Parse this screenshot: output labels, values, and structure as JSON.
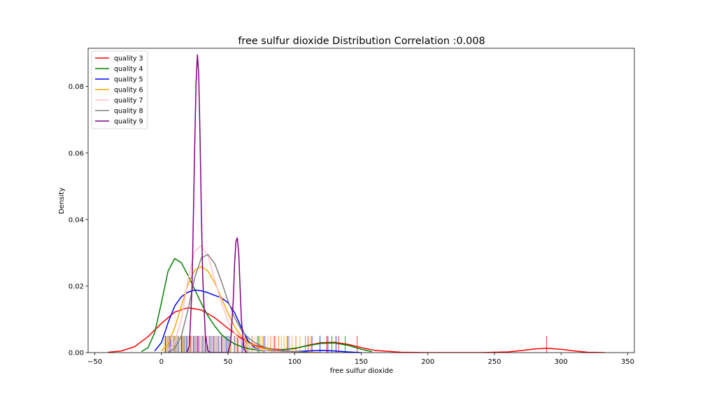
{
  "chart_data": {
    "type": "line",
    "title": "free sulfur dioxide Distribution Correlation :0.008",
    "xlabel": "free sulfur dioxide",
    "ylabel": "Density",
    "xlim": [
      -55,
      355
    ],
    "ylim": [
      0,
      0.0915
    ],
    "xticks": [
      -50,
      0,
      50,
      100,
      150,
      200,
      250,
      300,
      350
    ],
    "xtick_labels": [
      "−50",
      "0",
      "50",
      "100",
      "150",
      "200",
      "250",
      "300",
      "350"
    ],
    "yticks": [
      0,
      0.02,
      0.04,
      0.06,
      0.08
    ],
    "ytick_labels": [
      "0.00",
      "0.02",
      "0.04",
      "0.06",
      "0.08"
    ],
    "grid": false,
    "legend_position": "top-left",
    "rug_height": 0.005,
    "series": [
      {
        "name": "quality 3",
        "color": "#ff0000",
        "x": [
          -40,
          -30,
          -20,
          -10,
          0,
          10,
          20,
          30,
          40,
          50,
          60,
          70,
          80,
          90,
          100,
          110,
          120,
          130,
          140,
          150,
          160,
          180,
          200,
          220,
          240,
          260,
          270,
          280,
          289,
          300,
          310,
          320,
          333
        ],
        "y": [
          0.0001,
          0.0005,
          0.0018,
          0.0048,
          0.0088,
          0.0122,
          0.0135,
          0.0128,
          0.0105,
          0.0073,
          0.0043,
          0.0022,
          0.0012,
          0.0009,
          0.0012,
          0.0022,
          0.003,
          0.0031,
          0.0025,
          0.0015,
          0.0007,
          0.0001,
          0.0,
          0.0,
          0.0,
          0.0002,
          0.0006,
          0.0011,
          0.0013,
          0.001,
          0.0005,
          0.0001,
          0.0
        ],
        "rug": [
          3,
          5,
          6,
          7,
          9,
          10,
          11,
          13,
          14,
          16,
          17,
          19,
          22,
          24,
          26,
          28,
          31,
          34,
          38,
          41,
          45,
          52,
          58,
          63,
          72,
          85,
          110,
          124,
          133,
          147,
          289
        ]
      },
      {
        "name": "quality 4",
        "color": "#008000",
        "x": [
          -15,
          -10,
          -5,
          0,
          5,
          10,
          15,
          20,
          25,
          30,
          35,
          40,
          45,
          50,
          55,
          60,
          65,
          70,
          75,
          80,
          90,
          100,
          110,
          120,
          130,
          140,
          150,
          158
        ],
        "y": [
          0.0003,
          0.0015,
          0.006,
          0.015,
          0.0245,
          0.0283,
          0.027,
          0.0232,
          0.019,
          0.0148,
          0.011,
          0.008,
          0.0055,
          0.0038,
          0.0026,
          0.0018,
          0.0012,
          0.0009,
          0.0007,
          0.0006,
          0.0008,
          0.0013,
          0.0021,
          0.0028,
          0.0029,
          0.0022,
          0.001,
          0.0003
        ],
        "rug": [
          3,
          4,
          5,
          6,
          7,
          8,
          9,
          10,
          11,
          12,
          13,
          14,
          15,
          16,
          17,
          18,
          19,
          20,
          22,
          24,
          26,
          28,
          30,
          33,
          36,
          40,
          45,
          51,
          55,
          66,
          73,
          128,
          138
        ]
      },
      {
        "name": "quality 5",
        "color": "#0000ff",
        "x": [
          -5,
          0,
          5,
          10,
          15,
          20,
          25,
          30,
          35,
          40,
          45,
          50,
          55,
          60,
          65,
          70,
          75,
          80,
          90,
          100,
          110,
          120,
          130,
          140,
          150
        ],
        "y": [
          0.0005,
          0.003,
          0.009,
          0.014,
          0.0168,
          0.0182,
          0.0188,
          0.0186,
          0.018,
          0.0172,
          0.0165,
          0.015,
          0.012,
          0.0075,
          0.0035,
          0.0015,
          0.0008,
          0.0005,
          0.0003,
          0.0003,
          0.0005,
          0.0007,
          0.0005,
          0.0002,
          0.0
        ],
        "rug": [
          3,
          4,
          5,
          6,
          7,
          8,
          9,
          10,
          11,
          12,
          13,
          14,
          15,
          16,
          17,
          18,
          19,
          20,
          21,
          22,
          23,
          24,
          25,
          26,
          27,
          28,
          29,
          30,
          31,
          32,
          33,
          34,
          35,
          36,
          37,
          38,
          39,
          40,
          41,
          42,
          43,
          44,
          45,
          46,
          47,
          48,
          49,
          50,
          52,
          55,
          58,
          61,
          64,
          68,
          72,
          77,
          82,
          88,
          95,
          101,
          108,
          113,
          119,
          125,
          131
        ]
      },
      {
        "name": "quality 6",
        "color": "#ffa500",
        "x": [
          0,
          5,
          10,
          15,
          20,
          25,
          30,
          35,
          40,
          45,
          50,
          55,
          60,
          65,
          70,
          75,
          80,
          90,
          100,
          110,
          120
        ],
        "y": [
          0.0005,
          0.0025,
          0.0075,
          0.014,
          0.0205,
          0.0248,
          0.0258,
          0.0245,
          0.021,
          0.0165,
          0.0118,
          0.0078,
          0.0048,
          0.003,
          0.002,
          0.0014,
          0.001,
          0.0006,
          0.0003,
          0.0001,
          0.0
        ],
        "rug": [
          2,
          4,
          6,
          8,
          10,
          12,
          14,
          16,
          18,
          20,
          22,
          24,
          26,
          28,
          30,
          32,
          34,
          36,
          38,
          40,
          42,
          44,
          46,
          48,
          50,
          52,
          54,
          56,
          58,
          60,
          62,
          64,
          66,
          68,
          70,
          72,
          74,
          76,
          78,
          80,
          82,
          84,
          86,
          88,
          90,
          92,
          94,
          96,
          98,
          101,
          104,
          108,
          112
        ]
      },
      {
        "name": "quality 7",
        "color": "#ffc0cb",
        "x": [
          5,
          10,
          15,
          20,
          25,
          30,
          35,
          40,
          45,
          50,
          55,
          60,
          65,
          70,
          80,
          90,
          100
        ],
        "y": [
          0.0005,
          0.003,
          0.01,
          0.022,
          0.0305,
          0.0322,
          0.029,
          0.022,
          0.015,
          0.0095,
          0.0058,
          0.0035,
          0.002,
          0.0012,
          0.0005,
          0.0002,
          0.0
        ],
        "rug": [
          5,
          8,
          11,
          14,
          17,
          20,
          23,
          26,
          29,
          32,
          35,
          38,
          41,
          44,
          47,
          50,
          54,
          58,
          62,
          66,
          70,
          75,
          80,
          86
        ]
      },
      {
        "name": "quality 8",
        "color": "#808080",
        "x": [
          5,
          10,
          15,
          20,
          25,
          30,
          35,
          40,
          45,
          50,
          55,
          60,
          65,
          70,
          75,
          80,
          90,
          100,
          110
        ],
        "y": [
          0.0002,
          0.0012,
          0.005,
          0.013,
          0.0225,
          0.0285,
          0.0295,
          0.0268,
          0.0215,
          0.0155,
          0.0105,
          0.0068,
          0.0045,
          0.003,
          0.002,
          0.0013,
          0.0006,
          0.0003,
          0.0001
        ],
        "rug": [
          6,
          9,
          13,
          17,
          21,
          25,
          28,
          31,
          34,
          37,
          40,
          43,
          46,
          50,
          55,
          60,
          65,
          72
        ]
      },
      {
        "name": "quality 9",
        "color": "#800080",
        "x": [
          19,
          21,
          23,
          25,
          26,
          27,
          28,
          29,
          30,
          31,
          33,
          35,
          37,
          40,
          45,
          50,
          52,
          54,
          55,
          56,
          57,
          58,
          59,
          60,
          62,
          64
        ],
        "y": [
          0.0,
          0.002,
          0.02,
          0.062,
          0.081,
          0.0895,
          0.084,
          0.065,
          0.042,
          0.023,
          0.005,
          0.0005,
          0.0,
          0.0,
          0.0,
          0.0,
          0.003,
          0.016,
          0.027,
          0.0335,
          0.0345,
          0.03,
          0.02,
          0.01,
          0.001,
          0.0
        ],
        "rug": [
          24,
          27,
          28,
          57
        ]
      }
    ]
  }
}
